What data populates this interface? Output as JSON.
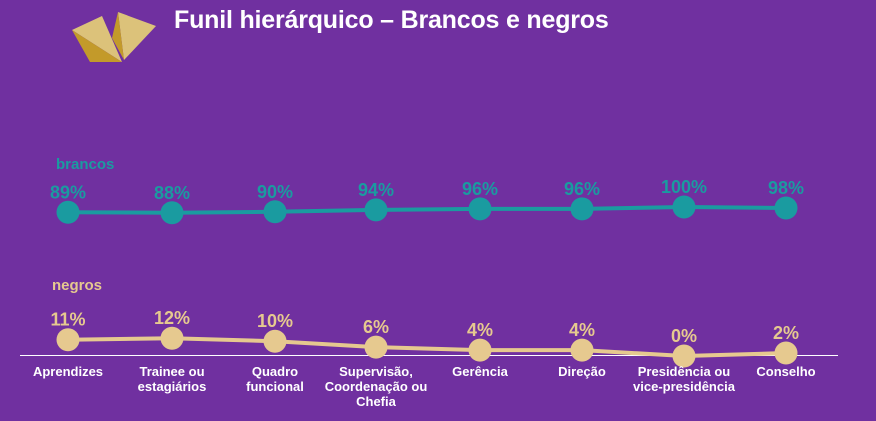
{
  "title": "Funil hierárquico – Brancos e negros",
  "colors": {
    "background": "#7030a0",
    "brancos": "#1a9ba0",
    "negros": "#e6c98f",
    "axis": "#ffffff",
    "logo_light": "#dcc27a",
    "logo_dark": "#c39a2a"
  },
  "chart_data": {
    "type": "line",
    "categories": [
      "Aprendizes",
      "Trainee ou estagiários",
      "Quadro funcional",
      "Supervisão, Coordenação ou Chefia",
      "Gerência",
      "Direção",
      "Presidência ou vice-presidência",
      "Conselho"
    ],
    "category_lines": [
      [
        "Aprendizes"
      ],
      [
        "Trainee ou",
        "estagiários"
      ],
      [
        "Quadro",
        "funcional"
      ],
      [
        "Supervisão,",
        "Coordenação ou",
        "Chefia"
      ],
      [
        "Gerência"
      ],
      [
        "Direção"
      ],
      [
        "Presidência ou",
        "vice-presidência"
      ],
      [
        "Conselho"
      ]
    ],
    "series": [
      {
        "name": "brancos",
        "values": [
          89,
          88,
          90,
          94,
          96,
          96,
          100,
          98
        ],
        "labels": [
          "89%",
          "88%",
          "90%",
          "94%",
          "96%",
          "96%",
          "100%",
          "98%"
        ]
      },
      {
        "name": "negros",
        "values": [
          11,
          12,
          10,
          6,
          4,
          4,
          0,
          2
        ],
        "labels": [
          "11%",
          "12%",
          "10%",
          "6%",
          "4%",
          "4%",
          "0%",
          "2%"
        ]
      }
    ],
    "ylim": [
      0,
      100
    ],
    "grid": false,
    "legend": "inline labels"
  }
}
